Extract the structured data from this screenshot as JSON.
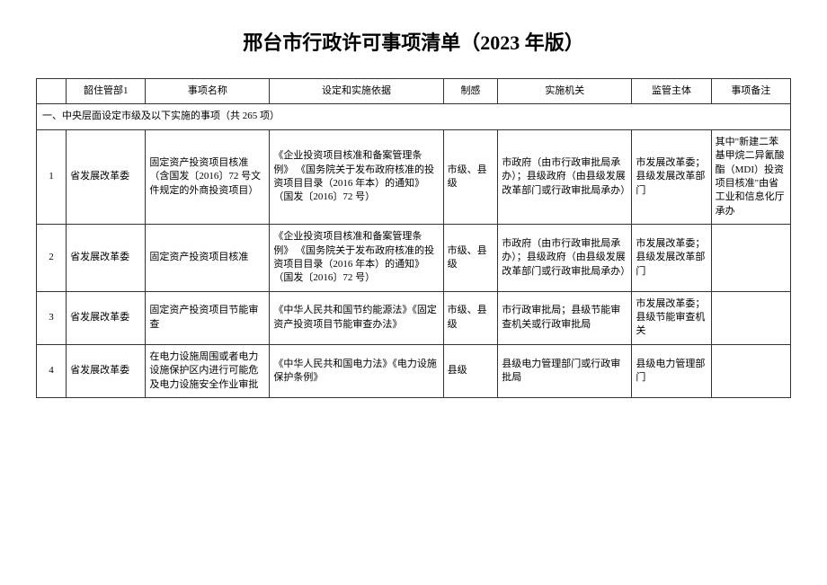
{
  "title": "邢台市行政许可事项清单（2023 年版）",
  "headers": {
    "idx": "",
    "dept": "韶住管部1",
    "name": "事项名称",
    "basis": "设定和实施依据",
    "level": "制感",
    "agency": "实施机关",
    "super": "监管主体",
    "note": "事项备注"
  },
  "section_header": "一、中央层面设定市级及以下实施的事项（共 265 项）",
  "rows": [
    {
      "idx": "1",
      "dept": "省发展改革委",
      "name": "固定资产投资项目核准（含国发〔2016〕72 号文件规定的外商投资项目）",
      "basis": "《企业投资项目核准和备案管理条例》\n《国务院关于发布政府核准的投资项目目录（2016 年本）的通知》（国发〔2016〕72 号）",
      "level": "市级、县级",
      "agency": "市政府（由市行政审批局承办）；县级政府（由县级发展改革部门或行政审批局承办）",
      "super": "市发展改革委；县级发展改革部门",
      "note": "其中\"新建二苯基甲烷二异氰酸酯（MDI）投资项目核准\"由省工业和信息化厅承办"
    },
    {
      "idx": "2",
      "dept": "省发展改革委",
      "name": "固定资产投资项目核准",
      "basis": "《企业投资项目核准和备案管理条例》\n《国务院关于发布政府核准的投资项目目录（2016 年本）的通知》（国发〔2016〕72 号）",
      "level": "市级、县级",
      "agency": "市政府（由市行政审批局承办）；县级政府（由县级发展改革部门或行政审批局承办）",
      "super": "市发展改革委；县级发展改革部门",
      "note": ""
    },
    {
      "idx": "3",
      "dept": "省发展改革委",
      "name": "固定资产投资项目节能审查",
      "basis": "《中华人民共和国节约能源法》《固定资产投资项目节能审查办法》",
      "level": "市级、县级",
      "agency": "市行政审批局；县级节能审查机关或行政审批局",
      "super": "市发展改革委；县级节能审查机关",
      "note": ""
    },
    {
      "idx": "4",
      "dept": "省发展改革委",
      "name": "在电力设施周围或者电力设施保护区内进行可能危及电力设施安全作业审批",
      "basis": "《中华人民共和国电力法》《电力设施保护条例》",
      "level": "县级",
      "agency": "县级电力管理部门或行政审批局",
      "super": "县级电力管理部门",
      "note": ""
    }
  ]
}
